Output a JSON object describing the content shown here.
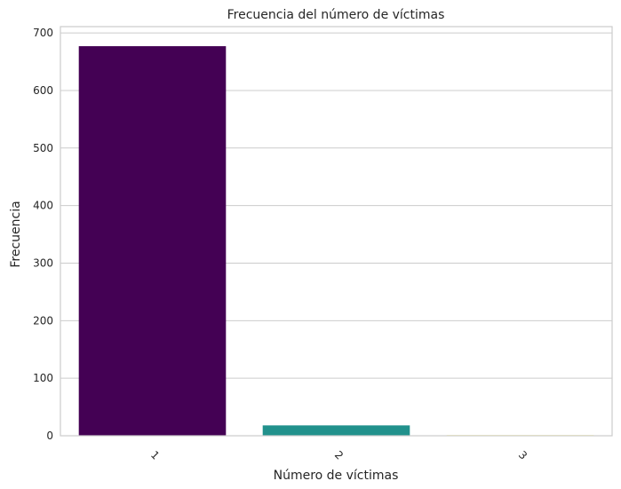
{
  "chart_data": {
    "type": "bar",
    "title": "Frecuencia del número de víctimas",
    "xlabel": "Número de víctimas",
    "ylabel": "Frecuencia",
    "categories": [
      "1",
      "2",
      "3"
    ],
    "values": [
      677,
      18,
      1
    ],
    "colors": [
      "#440154",
      "#21918c",
      "#fde725"
    ],
    "ylim": [
      0,
      711
    ],
    "yticks": [
      0,
      100,
      200,
      300,
      400,
      500,
      600,
      700
    ],
    "grid": true,
    "grid_axis": "y",
    "xtick_rotation": 45
  }
}
